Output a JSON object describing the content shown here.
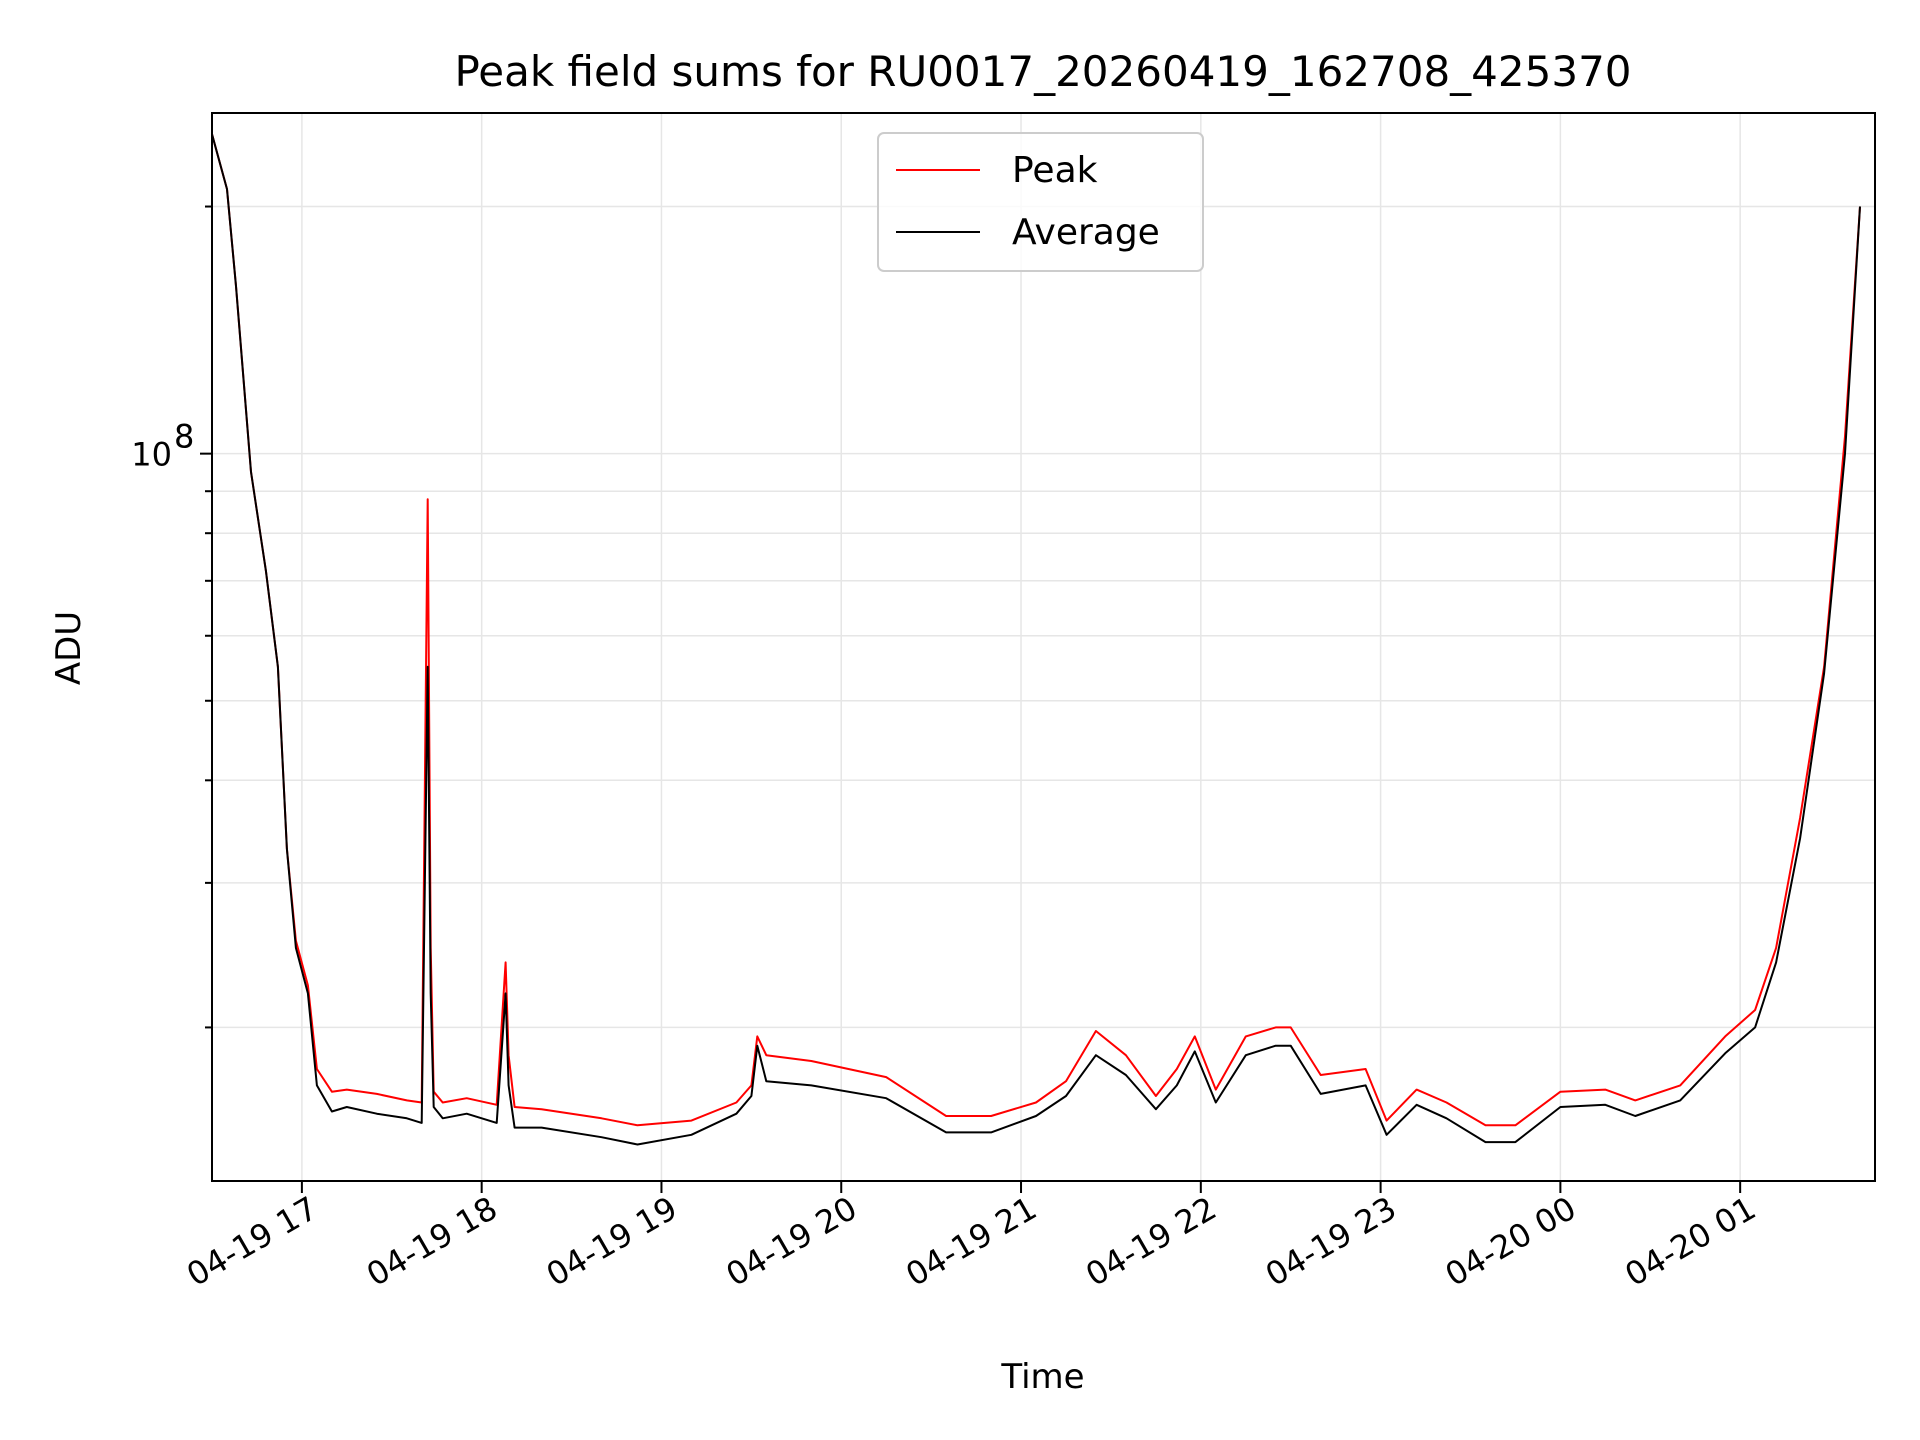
{
  "chart_data": {
    "type": "line",
    "title": "Peak field sums for RU0017_20260419_162708_425370",
    "xlabel": "Time",
    "ylabel": "ADU",
    "y_scale": "log",
    "y_tick_label": {
      "base": "10",
      "exponent": "8"
    },
    "x_range": [
      "2026-04-19 16:30",
      "2026-04-20 01:45"
    ],
    "ylim": [
      13000000,
      260000000
    ],
    "x_ticks": [
      {
        "t": "2026-04-19 17:00",
        "label": "04-19 17"
      },
      {
        "t": "2026-04-19 18:00",
        "label": "04-19 18"
      },
      {
        "t": "2026-04-19 19:00",
        "label": "04-19 19"
      },
      {
        "t": "2026-04-19 20:00",
        "label": "04-19 20"
      },
      {
        "t": "2026-04-19 21:00",
        "label": "04-19 21"
      },
      {
        "t": "2026-04-19 22:00",
        "label": "04-19 22"
      },
      {
        "t": "2026-04-19 23:00",
        "label": "04-19 23"
      },
      {
        "t": "2026-04-20 00:00",
        "label": "04-20 00"
      },
      {
        "t": "2026-04-20 01:00",
        "label": "04-20 01"
      }
    ],
    "grid": true,
    "legend": {
      "placement": "upper-center"
    },
    "series": [
      {
        "name": "Peak",
        "color": "#ff0000",
        "x": [
          "2026-04-19 16:30",
          "2026-04-19 16:35",
          "2026-04-19 16:38",
          "2026-04-19 16:43",
          "2026-04-19 16:48",
          "2026-04-19 16:52",
          "2026-04-19 16:55",
          "2026-04-19 16:58",
          "2026-04-19 17:02",
          "2026-04-19 17:05",
          "2026-04-19 17:10",
          "2026-04-19 17:15",
          "2026-04-19 17:25",
          "2026-04-19 17:35",
          "2026-04-19 17:40",
          "2026-04-19 17:42",
          "2026-04-19 17:43",
          "2026-04-19 17:44",
          "2026-04-19 17:47",
          "2026-04-19 17:55",
          "2026-04-19 18:05",
          "2026-04-19 18:08",
          "2026-04-19 18:09",
          "2026-04-19 18:11",
          "2026-04-19 18:20",
          "2026-04-19 18:40",
          "2026-04-19 18:52",
          "2026-04-19 19:10",
          "2026-04-19 19:25",
          "2026-04-19 19:30",
          "2026-04-19 19:32",
          "2026-04-19 19:35",
          "2026-04-19 19:50",
          "2026-04-19 20:15",
          "2026-04-19 20:35",
          "2026-04-19 20:50",
          "2026-04-19 21:05",
          "2026-04-19 21:15",
          "2026-04-19 21:25",
          "2026-04-19 21:35",
          "2026-04-19 21:45",
          "2026-04-19 21:52",
          "2026-04-19 21:58",
          "2026-04-19 22:05",
          "2026-04-19 22:15",
          "2026-04-19 22:25",
          "2026-04-19 22:30",
          "2026-04-19 22:40",
          "2026-04-19 22:55",
          "2026-04-19 23:02",
          "2026-04-19 23:12",
          "2026-04-19 23:22",
          "2026-04-19 23:35",
          "2026-04-19 23:45",
          "2026-04-20 00:00",
          "2026-04-20 00:15",
          "2026-04-20 00:25",
          "2026-04-20 00:40",
          "2026-04-20 00:55",
          "2026-04-20 01:05",
          "2026-04-20 01:12",
          "2026-04-20 01:20",
          "2026-04-20 01:28",
          "2026-04-20 01:35",
          "2026-04-20 01:40"
        ],
        "values": [
          245000000,
          210000000,
          160000000,
          95000000,
          72000000,
          55000000,
          33000000,
          25500000,
          22500000,
          17800000,
          16700000,
          16800000,
          16600000,
          16300000,
          16200000,
          88000000,
          25000000,
          16700000,
          16200000,
          16400000,
          16100000,
          24000000,
          18500000,
          16000000,
          15900000,
          15500000,
          15200000,
          15400000,
          16200000,
          17000000,
          19500000,
          18500000,
          18200000,
          17400000,
          15600000,
          15600000,
          16200000,
          17200000,
          19800000,
          18500000,
          16500000,
          17800000,
          19500000,
          16800000,
          19500000,
          20000000,
          20000000,
          17500000,
          17800000,
          15400000,
          16800000,
          16200000,
          15200000,
          15200000,
          16700000,
          16800000,
          16300000,
          17000000,
          19500000,
          21000000,
          25000000,
          36000000,
          55000000,
          105000000,
          200000000
        ]
      },
      {
        "name": "Average",
        "color": "#000000",
        "x": [
          "2026-04-19 16:30",
          "2026-04-19 16:35",
          "2026-04-19 16:38",
          "2026-04-19 16:43",
          "2026-04-19 16:48",
          "2026-04-19 16:52",
          "2026-04-19 16:55",
          "2026-04-19 16:58",
          "2026-04-19 17:02",
          "2026-04-19 17:05",
          "2026-04-19 17:10",
          "2026-04-19 17:15",
          "2026-04-19 17:25",
          "2026-04-19 17:35",
          "2026-04-19 17:40",
          "2026-04-19 17:42",
          "2026-04-19 17:43",
          "2026-04-19 17:44",
          "2026-04-19 17:47",
          "2026-04-19 17:55",
          "2026-04-19 18:05",
          "2026-04-19 18:08",
          "2026-04-19 18:09",
          "2026-04-19 18:11",
          "2026-04-19 18:20",
          "2026-04-19 18:40",
          "2026-04-19 18:52",
          "2026-04-19 19:10",
          "2026-04-19 19:25",
          "2026-04-19 19:30",
          "2026-04-19 19:32",
          "2026-04-19 19:35",
          "2026-04-19 19:50",
          "2026-04-19 20:15",
          "2026-04-19 20:35",
          "2026-04-19 20:50",
          "2026-04-19 21:05",
          "2026-04-19 21:15",
          "2026-04-19 21:25",
          "2026-04-19 21:35",
          "2026-04-19 21:45",
          "2026-04-19 21:52",
          "2026-04-19 21:58",
          "2026-04-19 22:05",
          "2026-04-19 22:15",
          "2026-04-19 22:25",
          "2026-04-19 22:30",
          "2026-04-19 22:40",
          "2026-04-19 22:55",
          "2026-04-19 23:02",
          "2026-04-19 23:12",
          "2026-04-19 23:22",
          "2026-04-19 23:35",
          "2026-04-19 23:45",
          "2026-04-20 00:00",
          "2026-04-20 00:15",
          "2026-04-20 00:25",
          "2026-04-20 00:40",
          "2026-04-20 00:55",
          "2026-04-20 01:05",
          "2026-04-20 01:12",
          "2026-04-20 01:20",
          "2026-04-20 01:28",
          "2026-04-20 01:35",
          "2026-04-20 01:40"
        ],
        "values": [
          245000000,
          210000000,
          160000000,
          95000000,
          72000000,
          55000000,
          33000000,
          25000000,
          22000000,
          17000000,
          15800000,
          16000000,
          15700000,
          15500000,
          15300000,
          55000000,
          22000000,
          16000000,
          15500000,
          15700000,
          15300000,
          22000000,
          17000000,
          15100000,
          15100000,
          14700000,
          14400000,
          14800000,
          15700000,
          16500000,
          19000000,
          17200000,
          17000000,
          16400000,
          14900000,
          14900000,
          15600000,
          16500000,
          18500000,
          17500000,
          15900000,
          17000000,
          18700000,
          16200000,
          18500000,
          19000000,
          19000000,
          16600000,
          17000000,
          14800000,
          16100000,
          15500000,
          14500000,
          14500000,
          16000000,
          16100000,
          15600000,
          16300000,
          18600000,
          20000000,
          24000000,
          34000000,
          54000000,
          100000000,
          200000000
        ]
      }
    ]
  }
}
